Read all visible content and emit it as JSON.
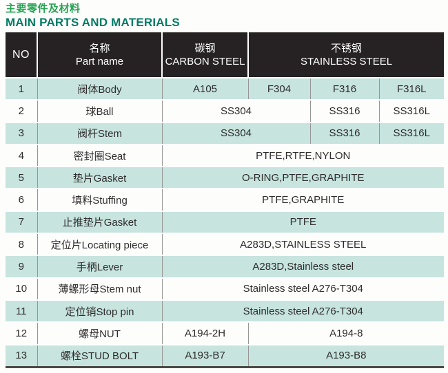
{
  "page": {
    "title_zh": "主要零件及材料",
    "title_en": "MAIN PARTS AND MATERIALS"
  },
  "colors": {
    "title_zh_green": "#25a352",
    "title_en_teal": "#007c64",
    "header_bg": "#262122",
    "header_text": "#ffffff",
    "alt_row_bg": "#c7e4df",
    "grid_line": "#969696",
    "bottom_border": "#4a4946"
  },
  "table": {
    "header": {
      "no": "NO",
      "part_name_zh": "名称",
      "part_name_en": "Part name",
      "carbon_zh": "碳钢",
      "carbon_en": "CARBON STEEL",
      "stainless_zh": "不锈钢",
      "stainless_en": "STAINLESS STEEL"
    },
    "rows": [
      {
        "no": "1",
        "name": "阀体Body",
        "materials": [
          "A105",
          "F304",
          "F316",
          "F316L"
        ]
      },
      {
        "no": "2",
        "name": "球Ball",
        "materials": [
          "SS304",
          "SS316",
          "SS316L"
        ]
      },
      {
        "no": "3",
        "name": "阀杆Stem",
        "materials": [
          "SS304",
          "SS316",
          "SS316L"
        ]
      },
      {
        "no": "4",
        "name": "密封圈Seat",
        "materials": [
          "PTFE,RTFE,NYLON"
        ]
      },
      {
        "no": "5",
        "name": "垫片Gasket",
        "materials": [
          "O-RING,PTFE,GRAPHITE"
        ]
      },
      {
        "no": "6",
        "name": "填料Stuffing",
        "materials": [
          "PTFE,GRAPHITE"
        ]
      },
      {
        "no": "7",
        "name": "止推垫片Gasket",
        "materials": [
          "PTFE"
        ]
      },
      {
        "no": "8",
        "name": "定位片Locating piece",
        "materials": [
          "A283D,STAINLESS STEEL"
        ]
      },
      {
        "no": "9",
        "name": "手柄Lever",
        "materials": [
          "A283D,Stainless steel"
        ]
      },
      {
        "no": "10",
        "name": "薄螺形母Stem nut",
        "materials": [
          "Stainless steel A276-T304"
        ]
      },
      {
        "no": "11",
        "name": "定位销Stop pin",
        "materials": [
          "Stainless steel A276-T304"
        ]
      },
      {
        "no": "12",
        "name": "螺母NUT",
        "materials": [
          "A194-2H",
          "A194-8"
        ]
      },
      {
        "no": "13",
        "name": "螺栓STUD BOLT",
        "materials": [
          "A193-B7",
          "A193-B8"
        ]
      }
    ]
  }
}
